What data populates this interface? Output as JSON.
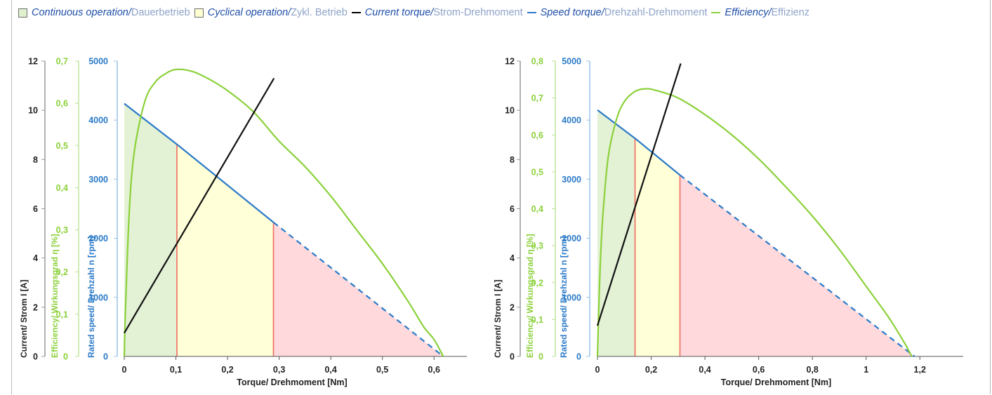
{
  "legend": {
    "items": [
      {
        "en": "Continuous operation",
        "de": "Dauerbetrieb",
        "kind": "swatch",
        "color": "#dff0cf"
      },
      {
        "en": "Cyclical operation",
        "de": "Zykl. Betrieb",
        "kind": "swatch",
        "color": "#ffffd2"
      },
      {
        "en": "Current torque",
        "de": "Strom-Drehmoment",
        "kind": "line",
        "color": "#000000"
      },
      {
        "en": "Speed torque",
        "de": "Drehzahl-Drehmoment",
        "kind": "line",
        "color": "#2a7ac8"
      },
      {
        "en": "Efficiency",
        "de": "Effizienz",
        "kind": "line",
        "color": "#8bd13a"
      }
    ],
    "separator": "/"
  },
  "colors": {
    "current": "#111111",
    "speed": "#2a7ac8",
    "efficiency": "#8bd13a",
    "continuous_fill": "#e3f1d5",
    "cyclical_fill": "#ffffd8",
    "overload_fill": "#ffd9dc",
    "boundary": "#ef6a5f",
    "axis_text": "#222222"
  },
  "chart_data": [
    {
      "type": "line",
      "xlabel": "Torque/ Drehmoment [Nm]",
      "xlim": [
        0,
        0.65
      ],
      "xticks": [
        0,
        0.1,
        0.2,
        0.3,
        0.4,
        0.5,
        0.6
      ],
      "xtick_labels": [
        "0",
        "0,1",
        "0,2",
        "0,3",
        "0,4",
        "0,5",
        "0,6"
      ],
      "axes": {
        "current": {
          "label": "Current/ Strom I [A]",
          "lim": [
            0,
            12
          ],
          "ticks": [
            0,
            2,
            4,
            6,
            8,
            10,
            12
          ],
          "tick_labels": [
            "0",
            "2",
            "4",
            "6",
            "8",
            "10",
            "12"
          ]
        },
        "efficiency": {
          "label": "Efficiency/ Wirkungsgrad η [%]",
          "lim": [
            0,
            0.7
          ],
          "ticks": [
            0,
            0.1,
            0.2,
            0.3,
            0.4,
            0.5,
            0.6,
            0.7
          ],
          "tick_labels": [
            "0",
            "0,1",
            "0,2",
            "0,3",
            "0,4",
            "0,5",
            "0,6",
            "0,7"
          ]
        },
        "speed": {
          "label": "Rated speed/ Drehzahl n [rpm]",
          "lim": [
            0,
            5000
          ],
          "ticks": [
            0,
            1000,
            2000,
            3000,
            4000,
            5000
          ],
          "tick_labels": [
            "0",
            "1000",
            "2000",
            "3000",
            "4000",
            "5000"
          ]
        }
      },
      "continuous_limit": 0.102,
      "cyclical_limit": 0.289,
      "series": [
        {
          "key": "speed",
          "x": [
            0,
            0.102,
            0.289,
            0.618
          ],
          "values": [
            4280,
            3590,
            2270,
            0
          ],
          "solid_until": 0.289
        },
        {
          "key": "current",
          "x": [
            0,
            0.29
          ],
          "values": [
            0.95,
            11.3
          ]
        },
        {
          "key": "efficiency",
          "x": [
            0,
            0.002,
            0.01,
            0.02,
            0.04,
            0.06,
            0.08,
            0.1,
            0.13,
            0.16,
            0.2,
            0.25,
            0.3,
            0.35,
            0.4,
            0.45,
            0.5,
            0.55,
            0.58,
            0.6,
            0.618
          ],
          "values": [
            0,
            0.1,
            0.35,
            0.49,
            0.605,
            0.65,
            0.67,
            0.68,
            0.676,
            0.66,
            0.63,
            0.58,
            0.51,
            0.45,
            0.38,
            0.3,
            0.22,
            0.13,
            0.07,
            0.04,
            0
          ]
        }
      ]
    },
    {
      "type": "line",
      "xlabel": "Torque/ Drehmoment [Nm]",
      "xlim": [
        0,
        1.33
      ],
      "xticks": [
        0,
        0.2,
        0.4,
        0.6,
        0.8,
        1.0,
        1.2
      ],
      "xtick_labels": [
        "0",
        "0,2",
        "0,4",
        "0,6",
        "0,8",
        "1",
        "1,2"
      ],
      "axes": {
        "current": {
          "label": "Current/ Strom I [A]",
          "lim": [
            0,
            12
          ],
          "ticks": [
            0,
            2,
            4,
            6,
            8,
            10,
            12
          ],
          "tick_labels": [
            "0",
            "2",
            "4",
            "6",
            "8",
            "10",
            "12"
          ]
        },
        "efficiency": {
          "label": "Efficiency/ Wirkungsgrad η [%]",
          "lim": [
            0,
            0.8
          ],
          "ticks": [
            0,
            0.1,
            0.2,
            0.3,
            0.4,
            0.5,
            0.6,
            0.7,
            0.8
          ],
          "tick_labels": [
            "0",
            "0,1",
            "0,2",
            "0,3",
            "0,4",
            "0,5",
            "0,6",
            "0,7",
            "0,8"
          ]
        },
        "speed": {
          "label": "Rated speed/ Drehzahl n [rpm]",
          "lim": [
            0,
            5000
          ],
          "ticks": [
            0,
            1000,
            2000,
            3000,
            4000,
            5000
          ],
          "tick_labels": [
            "0",
            "1000",
            "2000",
            "3000",
            "4000",
            "5000"
          ]
        }
      },
      "continuous_limit": 0.14,
      "cyclical_limit": 0.307,
      "series": [
        {
          "key": "speed",
          "x": [
            0,
            0.14,
            0.307,
            1.18
          ],
          "values": [
            4170,
            3690,
            3070,
            0
          ],
          "solid_until": 0.307
        },
        {
          "key": "current",
          "x": [
            0,
            0.31
          ],
          "values": [
            1.25,
            11.9
          ]
        },
        {
          "key": "efficiency",
          "x": [
            0,
            0.003,
            0.01,
            0.02,
            0.04,
            0.07,
            0.1,
            0.14,
            0.18,
            0.22,
            0.3,
            0.4,
            0.5,
            0.6,
            0.7,
            0.8,
            0.9,
            1.0,
            1.08,
            1.14,
            1.17
          ],
          "values": [
            0,
            0.08,
            0.24,
            0.38,
            0.54,
            0.64,
            0.69,
            0.718,
            0.725,
            0.72,
            0.7,
            0.655,
            0.6,
            0.535,
            0.46,
            0.38,
            0.29,
            0.19,
            0.11,
            0.04,
            0
          ]
        }
      ]
    }
  ]
}
